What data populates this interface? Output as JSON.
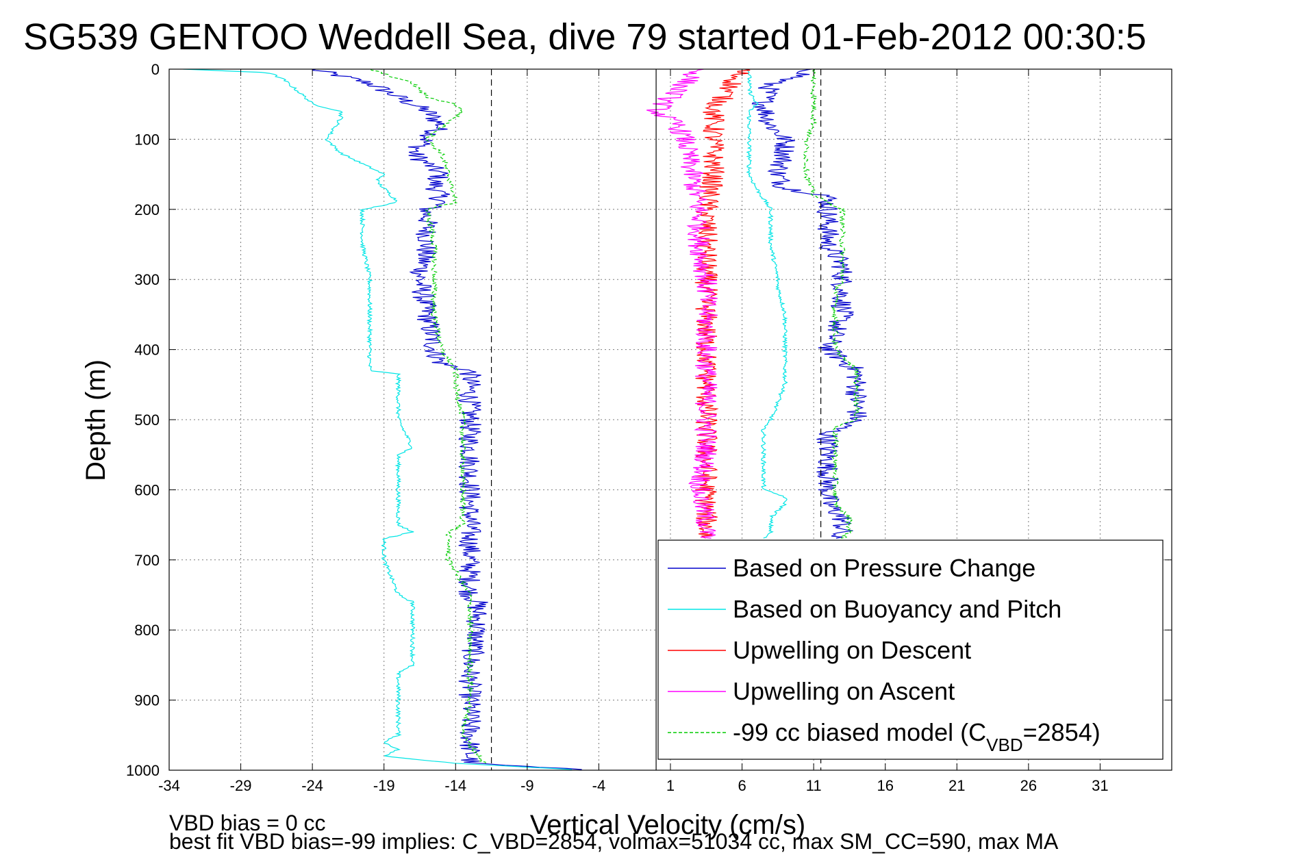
{
  "chart_data": {
    "type": "line",
    "title": "SG539 GENTOO Weddell Sea, dive 79 started 01-Feb-2012 00:30:5",
    "xlabel": "Vertical Velocity (cm/s)",
    "ylabel": "Depth (m)",
    "xlim": [
      -34,
      36
    ],
    "ylim": [
      1000,
      0
    ],
    "x_ticks": [
      "-34",
      "-29",
      "-24",
      "-19",
      "-14",
      "-9",
      "-4",
      "1",
      "6",
      "11",
      "16",
      "21",
      "26",
      "31"
    ],
    "y_ticks": [
      "0",
      "100",
      "200",
      "300",
      "400",
      "500",
      "600",
      "700",
      "800",
      "900",
      "1000"
    ],
    "grid": true,
    "reference_lines": {
      "solid_x": 0,
      "dashed_x": [
        -11.5,
        11.5
      ]
    },
    "annotations": [
      "VBD bias = 0 cc",
      "best fit VBD bias=-99 implies: C_VBD=2854, volmax=51034 cc, max SM_CC=590, max MA"
    ],
    "legend_position": "bottom-right",
    "legend": [
      {
        "label": "Based on Pressure Change",
        "color": "#0000cc",
        "dash": false
      },
      {
        "label": "Based on Buoyancy and Pitch",
        "color": "#00e5e5",
        "dash": false
      },
      {
        "label": "Upwelling on Descent",
        "color": "#ff0000",
        "dash": false
      },
      {
        "label": "Upwelling on Ascent",
        "color": "#ff00ff",
        "dash": false
      },
      {
        "label": "-99 cc biased model (C",
        "sub": "VBD",
        "suffix": "=2854)",
        "color": "#00cc00",
        "dash": true
      }
    ],
    "series": [
      {
        "name": "Based on Pressure Change",
        "color": "#0000cc",
        "profiles": [
          {
            "depth": [
              0,
              20,
              40,
              60,
              80,
              100,
              120,
              150,
              160,
              190,
              200,
              250,
              300,
              350,
              400,
              420,
              430,
              500,
              550,
              600,
              650,
              700,
              750,
              760,
              800,
              850,
              900,
              950,
              990,
              1000
            ],
            "velocity": [
              -24,
              -20,
              -18,
              -16,
              -15,
              -16,
              -17,
              -15,
              -15.5,
              -15,
              -16,
              -16,
              -16.5,
              -16,
              -15.5,
              -15,
              -13,
              -13,
              -13,
              -13,
              -13,
              -13,
              -13,
              -12.5,
              -12.5,
              -13,
              -13,
              -13,
              -13,
              -5
            ]
          },
          {
            "depth": [
              0,
              10,
              20,
              50,
              80,
              100,
              120,
              150,
              170,
              180,
              200,
              250,
              280,
              300,
              350,
              400,
              430,
              450,
              500,
              510,
              520,
              550,
              600,
              620,
              640,
              660,
              670
            ],
            "velocity": [
              11,
              10,
              8,
              7.5,
              8,
              9,
              9,
              8.5,
              9,
              12,
              12,
              12,
              13,
              13,
              13,
              12,
              14,
              14,
              14,
              13,
              12,
              12,
              12,
              12,
              13,
              13,
              12
            ]
          }
        ],
        "noise": 0.8
      },
      {
        "name": "Based on Buoyancy and Pitch",
        "color": "#00e5e5",
        "profiles": [
          {
            "depth": [
              0,
              5,
              15,
              40,
              50,
              60,
              70,
              100,
              120,
              130,
              150,
              160,
              190,
              200,
              250,
              300,
              350,
              400,
              430,
              435,
              450,
              500,
              540,
              550,
              600,
              650,
              660,
              670,
              700,
              750,
              760,
              800,
              845,
              850,
              860,
              900,
              950,
              960,
              970,
              980,
              990,
              1000
            ],
            "velocity": [
              -33,
              -27,
              -26,
              -24.5,
              -24,
              -22,
              -22,
              -23,
              -22,
              -21,
              -19,
              -19.5,
              -18,
              -20.5,
              -20.5,
              -20,
              -20,
              -20,
              -20,
              -18,
              -18,
              -18,
              -17,
              -18,
              -18,
              -18,
              -17,
              -19,
              -19,
              -18,
              -17,
              -17,
              -17,
              -17,
              -18,
              -18,
              -18,
              -19,
              -18,
              -19,
              -14,
              -5
            ]
          },
          {
            "depth": [
              0,
              10,
              30,
              50,
              60,
              100,
              120,
              130,
              150,
              170,
              200,
              220,
              250,
              300,
              310,
              350,
              400,
              450,
              500,
              510,
              550,
              600,
              610,
              620,
              640,
              660,
              670
            ],
            "velocity": [
              6.5,
              6.5,
              6.5,
              7,
              6.5,
              6.5,
              6.5,
              6.5,
              6.5,
              7,
              8,
              8,
              8,
              8.5,
              8.5,
              9,
              9,
              9,
              8,
              7.5,
              7.5,
              7.5,
              9,
              9,
              8,
              8,
              7.5
            ]
          }
        ],
        "noise": 0.15
      },
      {
        "name": "Upwelling on Descent",
        "color": "#ff0000",
        "profiles": [
          {
            "depth": [
              0,
              30,
              60,
              80,
              100,
              150,
              200,
              250,
              300,
              350,
              400,
              450,
              500,
              550,
              600,
              650,
              670
            ],
            "velocity": [
              6,
              5,
              4,
              4,
              4,
              4,
              3.5,
              3.5,
              3.5,
              3.5,
              3.5,
              3.5,
              3.5,
              3.5,
              3.5,
              3.5,
              3.5
            ]
          }
        ],
        "noise": 0.8
      },
      {
        "name": "Upwelling on Ascent",
        "color": "#ff00ff",
        "profiles": [
          {
            "depth": [
              0,
              10,
              30,
              50,
              60,
              80,
              100,
              150,
              200,
              250,
              300,
              350,
              400,
              450,
              500,
              550,
              600,
              650,
              670
            ],
            "velocity": [
              3,
              2.5,
              1.5,
              0.5,
              0,
              1.5,
              2,
              2.5,
              3,
              3,
              3.5,
              3.5,
              3.5,
              3.5,
              3.5,
              3.5,
              3,
              3.5,
              3.5
            ]
          }
        ],
        "noise": 0.8
      },
      {
        "name": "-99 cc biased model (C_VBD=2854)",
        "color": "#00cc00",
        "dashed": true,
        "profiles": [
          {
            "depth": [
              0,
              20,
              40,
              50,
              60,
              100,
              120,
              150,
              190,
              200,
              250,
              300,
              350,
              400,
              430,
              450,
              500,
              550,
              600,
              650,
              660,
              700,
              750,
              800,
              845,
              850,
              900,
              950,
              990
            ],
            "velocity": [
              -20,
              -17,
              -16,
              -14,
              -13.5,
              -16,
              -15,
              -14.5,
              -14,
              -16,
              -15.5,
              -15.5,
              -15.5,
              -15,
              -14,
              -14,
              -13.5,
              -13.5,
              -13.5,
              -13.5,
              -14.5,
              -14.5,
              -13,
              -13,
              -13,
              -13,
              -13,
              -13.5,
              -12
            ]
          },
          {
            "depth": [
              0,
              10,
              30,
              60,
              80,
              100,
              120,
              150,
              180,
              200,
              250,
              300,
              320,
              350,
              400,
              430,
              450,
              500,
              510,
              550,
              600,
              620,
              640,
              660,
              670
            ],
            "velocity": [
              11,
              11,
              11,
              11,
              11,
              10.5,
              10.5,
              10.5,
              11,
              13,
              13,
              13,
              12.5,
              12.5,
              12.5,
              14,
              14,
              14,
              12.5,
              12.5,
              12.5,
              12.5,
              13.5,
              13.5,
              13
            ]
          }
        ],
        "noise": 0.2
      }
    ]
  }
}
